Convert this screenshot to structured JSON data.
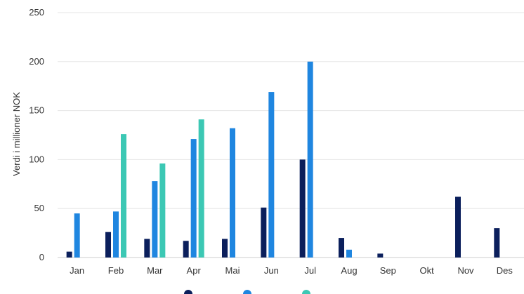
{
  "chart_data": {
    "type": "bar",
    "title": "",
    "xlabel": "",
    "ylabel": "Verdi i millioner NOK",
    "ylim": [
      0,
      250
    ],
    "yticks": [
      0,
      50,
      100,
      150,
      200,
      250
    ],
    "grid": true,
    "legend_position": "bottom",
    "categories": [
      "Jan",
      "Feb",
      "Mar",
      "Apr",
      "Mai",
      "Jun",
      "Jul",
      "Aug",
      "Sep",
      "Okt",
      "Nov",
      "Des"
    ],
    "series": [
      {
        "name": "",
        "color": "#0b1f5c",
        "values": [
          6,
          26,
          19,
          17,
          19,
          51,
          100,
          20,
          4,
          null,
          62,
          30
        ]
      },
      {
        "name": "",
        "color": "#1f86e0",
        "values": [
          45,
          47,
          78,
          121,
          132,
          169,
          200,
          8,
          null,
          null,
          null,
          null
        ]
      },
      {
        "name": "",
        "color": "#3cc8b4",
        "values": [
          null,
          126,
          96,
          141,
          null,
          null,
          null,
          null,
          null,
          null,
          null,
          null
        ]
      }
    ]
  }
}
